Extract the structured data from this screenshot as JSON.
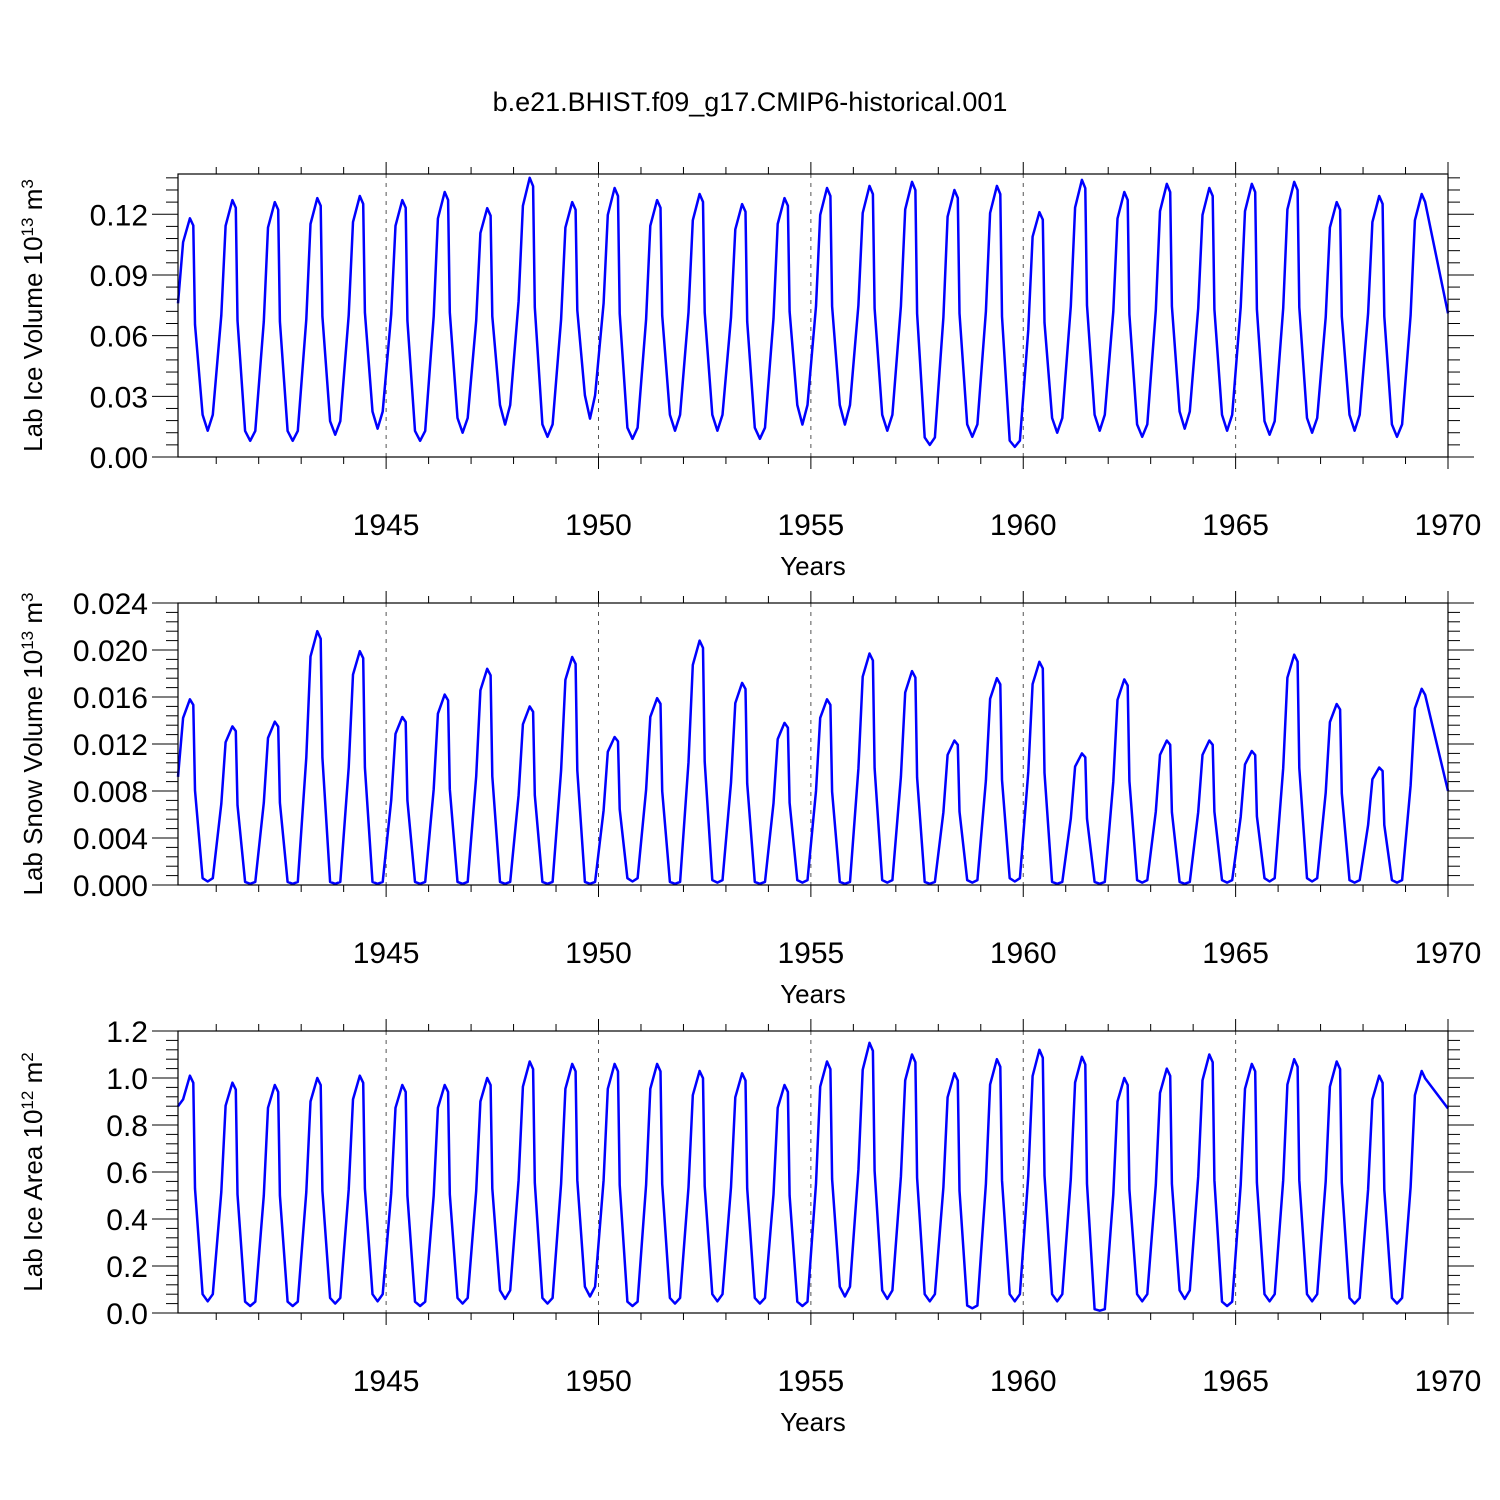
{
  "chart_data": {
    "type": "line",
    "title": "b.e21.BHIST.f09_g17.CMIP6-historical.001",
    "panels": [
      {
        "ylabel": "Lab Ice Volume",
        "ylabel_unit": "10",
        "ylabel_exp": "13",
        "ylabel_unit2": " m",
        "ylabel_exp2": "3",
        "xlabel": "Years",
        "xlim": [
          1940.1,
          1970
        ],
        "ylim": [
          0,
          0.1399
        ],
        "yticks": [
          "0.00",
          "0.03",
          "0.06",
          "0.09",
          "0.12"
        ],
        "ytick_values": [
          0,
          0.03,
          0.06,
          0.09,
          0.12
        ],
        "xticks": [
          "1945",
          "1950",
          "1955",
          "1960",
          "1965",
          "1970"
        ],
        "xtick_values": [
          1945,
          1950,
          1955,
          1960,
          1965,
          1970
        ],
        "series": {
          "name": "Lab Ice Volume",
          "min": [
            0.013,
            0.008,
            0.008,
            0.011,
            0.014,
            0.008,
            0.012,
            0.016,
            0.01,
            0.019,
            0.009,
            0.013,
            0.013,
            0.009,
            0.016,
            0.016,
            0.013,
            0.006,
            0.01,
            0.005,
            0.012,
            0.013,
            0.01,
            0.014,
            0.013,
            0.011,
            0.012,
            0.013,
            0.01
          ],
          "max": [
            0.118,
            0.127,
            0.126,
            0.128,
            0.129,
            0.127,
            0.131,
            0.123,
            0.138,
            0.126,
            0.133,
            0.127,
            0.13,
            0.125,
            0.128,
            0.133,
            0.134,
            0.136,
            0.132,
            0.134,
            0.121,
            0.137,
            0.131,
            0.135,
            0.133,
            0.135,
            0.136,
            0.126,
            0.129,
            0.13
          ],
          "start": 0.076,
          "end": 0.071
        }
      },
      {
        "ylabel": "Lab Snow Volume",
        "ylabel_unit": "10",
        "ylabel_exp": "13",
        "ylabel_unit2": " m",
        "ylabel_exp2": "3",
        "xlabel": "Years",
        "xlim": [
          1940.1,
          1970
        ],
        "ylim": [
          0,
          0.024
        ],
        "yticks": [
          "0.000",
          "0.004",
          "0.008",
          "0.012",
          "0.016",
          "0.020",
          "0.024"
        ],
        "ytick_values": [
          0,
          0.004,
          0.008,
          0.012,
          0.016,
          0.02,
          0.024
        ],
        "xticks": [
          "1945",
          "1950",
          "1955",
          "1960",
          "1965",
          "1970"
        ],
        "xtick_values": [
          1945,
          1950,
          1955,
          1960,
          1965,
          1970
        ],
        "series": {
          "name": "Lab Snow Volume",
          "min": [
            0.0003,
            0.0001,
            0.0001,
            0.0001,
            0.0001,
            0.0001,
            0.0001,
            0.0001,
            0.0001,
            0.0001,
            0.0003,
            0.0001,
            0.0002,
            0.0001,
            0.0002,
            0.0001,
            0.0002,
            0.0001,
            0.0002,
            0.0003,
            0.0001,
            0.0001,
            0.0002,
            0.0001,
            0.0002,
            0.0003,
            0.0003,
            0.0002,
            0.0002
          ],
          "max": [
            0.0158,
            0.0135,
            0.0139,
            0.0216,
            0.0199,
            0.0143,
            0.0162,
            0.0184,
            0.0152,
            0.0194,
            0.0126,
            0.0159,
            0.0208,
            0.0172,
            0.0138,
            0.0158,
            0.0197,
            0.0182,
            0.0123,
            0.0176,
            0.019,
            0.0112,
            0.0175,
            0.0123,
            0.0123,
            0.0114,
            0.0196,
            0.0154,
            0.01,
            0.0167
          ],
          "start": 0.0092,
          "end": 0.008
        }
      },
      {
        "ylabel": "Lab Ice Area",
        "ylabel_unit": "10",
        "ylabel_exp": "12",
        "ylabel_unit2": " m",
        "ylabel_exp2": "2",
        "xlabel": "Years",
        "xlim": [
          1940.1,
          1970
        ],
        "ylim": [
          0,
          1.2
        ],
        "yticks": [
          "0.0",
          "0.2",
          "0.4",
          "0.6",
          "0.8",
          "1.0",
          "1.2"
        ],
        "ytick_values": [
          0,
          0.2,
          0.4,
          0.6,
          0.8,
          1.0,
          1.2
        ],
        "xticks": [
          "1945",
          "1950",
          "1955",
          "1960",
          "1965",
          "1970"
        ],
        "xtick_values": [
          1945,
          1950,
          1955,
          1960,
          1965,
          1970
        ],
        "series": {
          "name": "Lab Ice Area",
          "min": [
            0.05,
            0.03,
            0.03,
            0.04,
            0.05,
            0.03,
            0.04,
            0.06,
            0.04,
            0.07,
            0.03,
            0.04,
            0.05,
            0.04,
            0.03,
            0.07,
            0.06,
            0.05,
            0.02,
            0.05,
            0.05,
            0.01,
            0.05,
            0.06,
            0.03,
            0.05,
            0.05,
            0.04,
            0.04
          ],
          "max": [
            1.01,
            0.98,
            0.97,
            1.0,
            1.01,
            0.97,
            0.97,
            1.0,
            1.07,
            1.06,
            1.06,
            1.06,
            1.03,
            1.02,
            0.97,
            1.07,
            1.15,
            1.1,
            1.02,
            1.08,
            1.12,
            1.09,
            1.0,
            1.04,
            1.1,
            1.06,
            1.08,
            1.07,
            1.01,
            1.03
          ],
          "start": 0.88,
          "end": 0.87
        }
      }
    ]
  }
}
